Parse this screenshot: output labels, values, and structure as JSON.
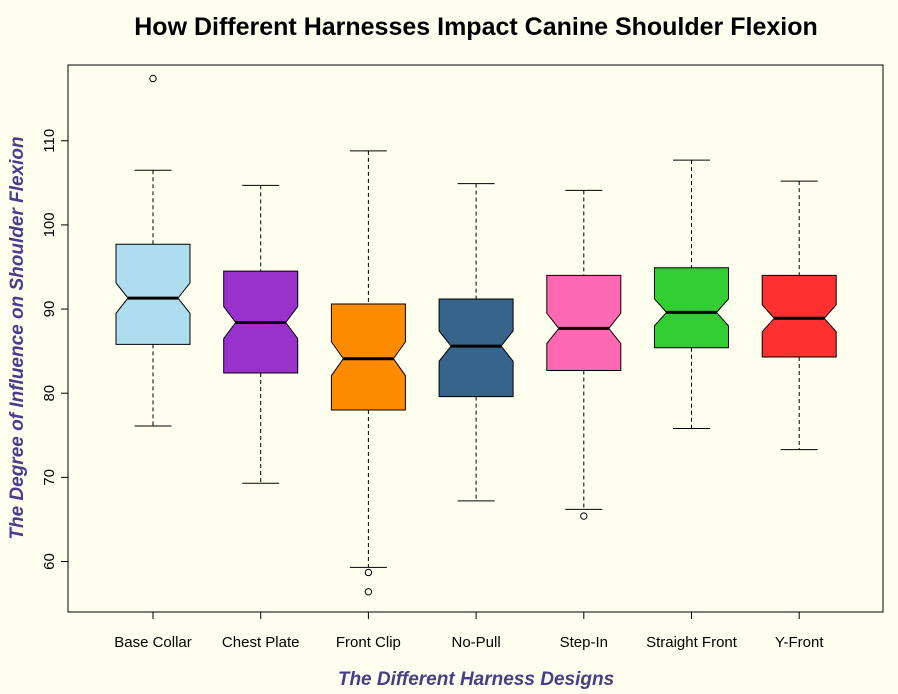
{
  "chart_data": {
    "type": "boxplot",
    "title": "How Different Harnesses Impact Canine Shoulder Flexion",
    "xlabel": "The Different Harness Designs",
    "ylabel": "The Degree of Influence on Shoulder Flexion",
    "ylim": [
      54,
      119
    ],
    "yticks": [
      60,
      70,
      80,
      90,
      100,
      110
    ],
    "notched": true,
    "label_color": "#483D8B",
    "categories": [
      "Base Collar",
      "Chest Plate",
      "Front Clip",
      "No-Pull",
      "Step-In",
      "Straight Front",
      "Y-Front"
    ],
    "boxes": [
      {
        "name": "Base Collar",
        "color": "#ADDDEF",
        "whisker_low": 76.1,
        "q1": 85.8,
        "median": 91.3,
        "q3": 97.7,
        "whisker_high": 106.5,
        "notch_low": 89.5,
        "notch_high": 93.1,
        "outliers": [
          117.4
        ]
      },
      {
        "name": "Chest Plate",
        "color": "#9932CC",
        "whisker_low": 69.3,
        "q1": 82.4,
        "median": 88.4,
        "q3": 94.5,
        "whisker_high": 104.7,
        "notch_low": 86.5,
        "notch_high": 90.3,
        "outliers": []
      },
      {
        "name": "Front Clip",
        "color": "#FF8C00",
        "whisker_low": 59.3,
        "q1": 78.0,
        "median": 84.1,
        "q3": 90.6,
        "whisker_high": 108.8,
        "notch_low": 82.1,
        "notch_high": 86.1,
        "outliers": [
          58.7,
          56.4
        ]
      },
      {
        "name": "No-Pull",
        "color": "#36648B",
        "whisker_low": 67.2,
        "q1": 79.6,
        "median": 85.6,
        "q3": 91.2,
        "whisker_high": 104.9,
        "notch_low": 83.8,
        "notch_high": 87.4,
        "outliers": []
      },
      {
        "name": "Step-In",
        "color": "#FF69B4",
        "whisker_low": 66.2,
        "q1": 82.7,
        "median": 87.7,
        "q3": 94.0,
        "whisker_high": 104.1,
        "notch_low": 85.9,
        "notch_high": 89.5,
        "outliers": [
          65.4
        ]
      },
      {
        "name": "Straight Front",
        "color": "#32CD32",
        "whisker_low": 75.8,
        "q1": 85.4,
        "median": 89.6,
        "q3": 94.9,
        "whisker_high": 107.7,
        "notch_low": 88.0,
        "notch_high": 91.2,
        "outliers": []
      },
      {
        "name": "Y-Front",
        "color": "#FF3030",
        "whisker_low": 73.3,
        "q1": 84.3,
        "median": 88.9,
        "q3": 94.0,
        "whisker_high": 105.2,
        "notch_low": 87.3,
        "notch_high": 90.5,
        "outliers": []
      }
    ]
  }
}
